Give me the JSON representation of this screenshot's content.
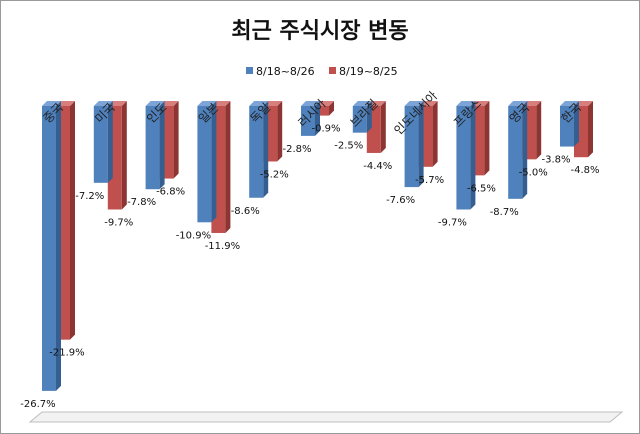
{
  "chart_data": {
    "type": "bar",
    "title": "최근 주식시장 변동",
    "categories": [
      "중국",
      "미국",
      "인도",
      "일본",
      "독일",
      "러시아",
      "브라질",
      "인도네시아",
      "프랑스",
      "영국",
      "한국"
    ],
    "series": [
      {
        "name": "8/18~8/26",
        "color": "#4f81bd",
        "values": [
          -26.7,
          -7.2,
          -7.8,
          -10.9,
          -8.6,
          -2.8,
          -2.5,
          -7.6,
          -9.7,
          -8.7,
          -3.8
        ]
      },
      {
        "name": "8/19~8/25",
        "color": "#c0504d",
        "values": [
          -21.9,
          -9.7,
          -6.8,
          -11.9,
          -5.2,
          -0.9,
          -4.4,
          -5.7,
          -6.5,
          -5.0,
          -4.8
        ]
      }
    ],
    "data_labels": [
      [
        "-26.7%",
        "-7.2%",
        "-7.8%",
        "-10.9%",
        "-8.6%",
        "-2.8%",
        "-2.5%",
        "-7.6%",
        "-9.7%",
        "-8.7%",
        "-3.8%"
      ],
      [
        "-21.9%",
        "-9.7%",
        "-6.8%",
        "-11.9%",
        "-5.2%",
        "-0.9%",
        "-4.4%",
        "-5.7%",
        "-6.5%",
        "-5.0%",
        "-4.8%"
      ]
    ],
    "ylim": [
      -28,
      0
    ],
    "grid": false,
    "legend_position": "top-center"
  }
}
